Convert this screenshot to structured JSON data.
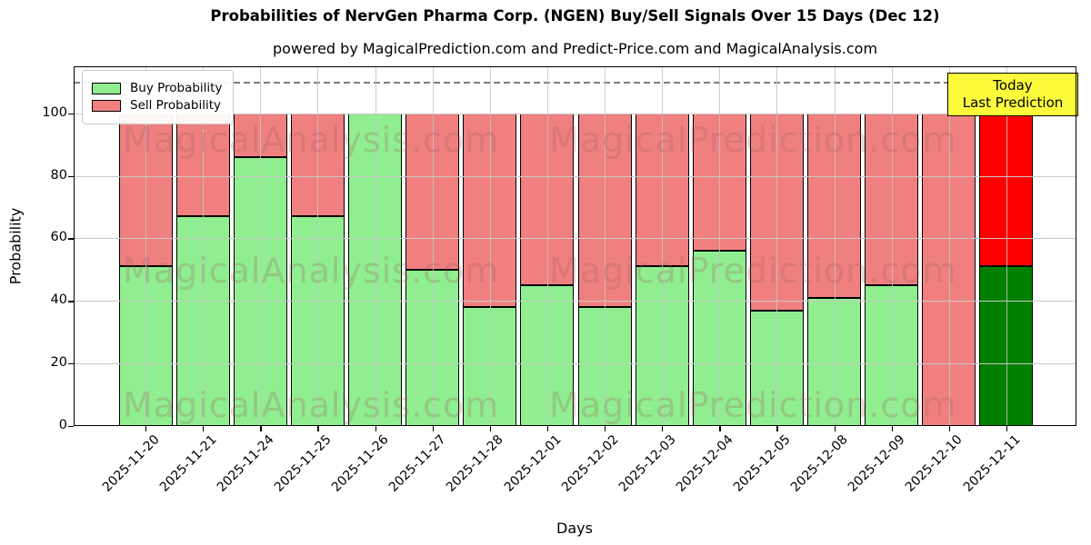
{
  "title": "Probabilities of NervGen Pharma Corp. (NGEN) Buy/Sell Signals Over 15 Days (Dec 12)",
  "subtitle": "powered by MagicalPrediction.com and Predict-Price.com and MagicalAnalysis.com",
  "legend": {
    "buy_label": "Buy Probability",
    "sell_label": "Sell Probability"
  },
  "annotation": {
    "line1": "Today",
    "line2": "Last Prediction",
    "bg_color": "#FBFB3B"
  },
  "axes": {
    "ylabel": "Probability",
    "xlabel": "Days",
    "yticks": [
      0,
      20,
      40,
      60,
      80,
      100
    ],
    "dashed_line_y": 110
  },
  "watermarks": {
    "left_text": "MagicalAnalysis.com",
    "right_text": "MagicalPrediction.com"
  },
  "colors": {
    "buy": "#90EE90",
    "sell": "#F08080",
    "buy_today": "#008000",
    "sell_today": "#FF0000",
    "grid": "#c8c8c8",
    "dashed": "#7f7f7f"
  },
  "chart_data": {
    "type": "bar",
    "stacked": true,
    "title": "Probabilities of NervGen Pharma Corp. (NGEN) Buy/Sell Signals Over 15 Days (Dec 12)",
    "xlabel": "Days",
    "ylabel": "Probability",
    "ylim": [
      0,
      115
    ],
    "grid": true,
    "legend_position": "upper left",
    "categories": [
      "2025-11-20",
      "2025-11-21",
      "2025-11-24",
      "2025-11-25",
      "2025-11-26",
      "2025-11-27",
      "2025-11-28",
      "2025-12-01",
      "2025-12-02",
      "2025-12-03",
      "2025-12-04",
      "2025-12-05",
      "2025-12-08",
      "2025-12-09",
      "2025-12-10",
      "2025-12-11"
    ],
    "series": [
      {
        "name": "Buy Probability",
        "values": [
          51,
          67,
          86,
          67,
          100,
          50,
          38,
          45,
          38,
          51,
          56,
          37,
          41,
          45,
          0,
          51
        ]
      },
      {
        "name": "Sell Probability",
        "values": [
          49,
          33,
          14,
          33,
          0,
          50,
          62,
          55,
          62,
          49,
          44,
          63,
          59,
          55,
          100,
          49
        ]
      }
    ],
    "today_bar_index": 15
  }
}
